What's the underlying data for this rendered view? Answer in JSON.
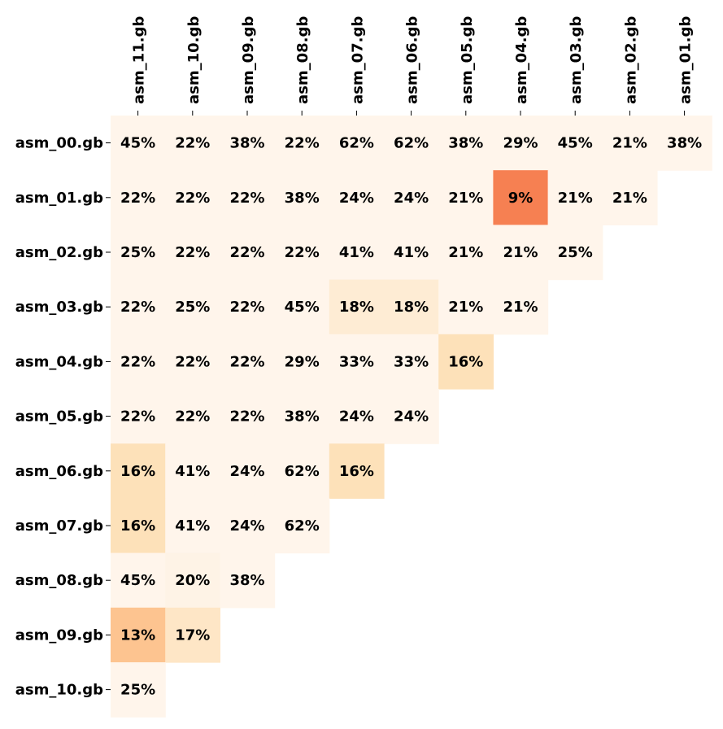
{
  "chart_data": {
    "type": "heatmap",
    "title": "",
    "xlabel": "",
    "ylabel": "",
    "columns": [
      "asm_11.gb",
      "asm_10.gb",
      "asm_09.gb",
      "asm_08.gb",
      "asm_07.gb",
      "asm_06.gb",
      "asm_05.gb",
      "asm_04.gb",
      "asm_03.gb",
      "asm_02.gb",
      "asm_01.gb"
    ],
    "rows": [
      "asm_00.gb",
      "asm_01.gb",
      "asm_02.gb",
      "asm_03.gb",
      "asm_04.gb",
      "asm_05.gb",
      "asm_06.gb",
      "asm_07.gb",
      "asm_08.gb",
      "asm_09.gb",
      "asm_10.gb"
    ],
    "values": [
      [
        45,
        22,
        38,
        22,
        62,
        62,
        38,
        29,
        45,
        21,
        38
      ],
      [
        22,
        22,
        22,
        38,
        24,
        24,
        21,
        9,
        21,
        21,
        null
      ],
      [
        25,
        22,
        22,
        22,
        41,
        41,
        21,
        21,
        25,
        null,
        null
      ],
      [
        22,
        25,
        22,
        45,
        18,
        18,
        21,
        21,
        null,
        null,
        null
      ],
      [
        22,
        22,
        22,
        29,
        33,
        33,
        16,
        null,
        null,
        null,
        null
      ],
      [
        22,
        22,
        22,
        38,
        24,
        24,
        null,
        null,
        null,
        null,
        null
      ],
      [
        16,
        41,
        24,
        62,
        16,
        null,
        null,
        null,
        null,
        null,
        null
      ],
      [
        16,
        41,
        24,
        62,
        null,
        null,
        null,
        null,
        null,
        null,
        null
      ],
      [
        45,
        20,
        38,
        null,
        null,
        null,
        null,
        null,
        null,
        null,
        null
      ],
      [
        13,
        17,
        null,
        null,
        null,
        null,
        null,
        null,
        null,
        null,
        null
      ],
      [
        25,
        null,
        null,
        null,
        null,
        null,
        null,
        null,
        null,
        null,
        null
      ]
    ],
    "value_suffix": "%",
    "colormap": "light-to-orange, lower values darker",
    "colors": {
      "high": "#fff5eb",
      "low": "#f16913"
    },
    "colorbar": false,
    "grid": false,
    "legend": "none"
  }
}
